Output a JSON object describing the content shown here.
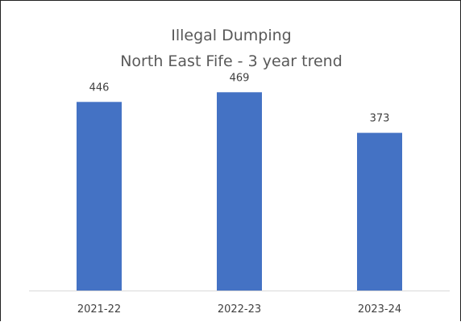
{
  "chart_data": {
    "type": "bar",
    "title": "Illegal Dumping",
    "subtitle": "North East Fife - 3 year trend",
    "categories": [
      "2021-22",
      "2022-23",
      "2023-24"
    ],
    "values": [
      446,
      469,
      373
    ],
    "data_labels": [
      "446",
      "469",
      "373"
    ],
    "xlabel": "",
    "ylabel": "",
    "ylim": [
      0,
      500
    ],
    "grid": false,
    "legend": "none",
    "bar_color": "#4472C4"
  }
}
